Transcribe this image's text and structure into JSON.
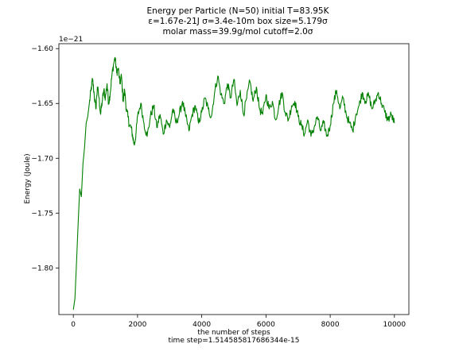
{
  "chart_data": {
    "type": "line",
    "title_lines": [
      "Energy per Particle (N=50) initial T=83.95K",
      "ε=1.67e-21J σ=3.4e-10m box size=5.179σ",
      "molar mass=39.9g/mol cutoff=2.0σ"
    ],
    "xlabel_lines": [
      "the number of steps",
      "time step=1.514585817686344e-15"
    ],
    "ylabel": "Energy (Joule)",
    "y_offset_label": "1e−21",
    "xlim": [
      -450,
      10450
    ],
    "ylim": [
      -1.8425,
      -1.5955
    ],
    "x_ticks": [
      0,
      2000,
      4000,
      6000,
      8000,
      10000
    ],
    "x_tick_labels": [
      "0",
      "2000",
      "4000",
      "6000",
      "8000",
      "10000"
    ],
    "y_ticks": [
      -1.8,
      -1.75,
      -1.7,
      -1.65,
      -1.6
    ],
    "y_tick_labels": [
      "−1.80",
      "−1.75",
      "−1.70",
      "−1.65",
      "−1.60"
    ],
    "grid": false,
    "series": [
      {
        "color": "#008000",
        "x": [
          0,
          50,
          100,
          150,
          200,
          250,
          300,
          350,
          400,
          450,
          500,
          550,
          600,
          650,
          700,
          750,
          800,
          850,
          900,
          950,
          1000,
          1050,
          1100,
          1150,
          1200,
          1250,
          1300,
          1350,
          1400,
          1450,
          1500,
          1550,
          1600,
          1650,
          1700,
          1750,
          1800,
          1850,
          1900,
          1950,
          2000,
          2100,
          2200,
          2300,
          2400,
          2500,
          2600,
          2700,
          2800,
          2900,
          3000,
          3100,
          3200,
          3300,
          3400,
          3500,
          3600,
          3700,
          3800,
          3900,
          4000,
          4100,
          4200,
          4300,
          4400,
          4500,
          4600,
          4700,
          4800,
          4900,
          5000,
          5100,
          5200,
          5300,
          5400,
          5500,
          5600,
          5700,
          5800,
          5900,
          6000,
          6100,
          6200,
          6300,
          6400,
          6500,
          6600,
          6700,
          6800,
          6900,
          7000,
          7100,
          7200,
          7300,
          7400,
          7500,
          7600,
          7700,
          7800,
          7900,
          8000,
          8100,
          8200,
          8300,
          8400,
          8500,
          8600,
          8700,
          8800,
          8900,
          9000,
          9100,
          9200,
          9300,
          9400,
          9500,
          9600,
          9700,
          9800,
          9900,
          10000
        ],
        "y": [
          -1.838,
          -1.828,
          -1.795,
          -1.76,
          -1.728,
          -1.735,
          -1.705,
          -1.69,
          -1.668,
          -1.662,
          -1.65,
          -1.638,
          -1.628,
          -1.642,
          -1.655,
          -1.635,
          -1.645,
          -1.66,
          -1.648,
          -1.638,
          -1.645,
          -1.632,
          -1.65,
          -1.64,
          -1.625,
          -1.615,
          -1.608,
          -1.622,
          -1.618,
          -1.632,
          -1.625,
          -1.648,
          -1.638,
          -1.655,
          -1.662,
          -1.67,
          -1.672,
          -1.68,
          -1.688,
          -1.678,
          -1.662,
          -1.65,
          -1.668,
          -1.68,
          -1.662,
          -1.652,
          -1.672,
          -1.66,
          -1.678,
          -1.665,
          -1.672,
          -1.655,
          -1.668,
          -1.66,
          -1.648,
          -1.662,
          -1.675,
          -1.66,
          -1.652,
          -1.668,
          -1.658,
          -1.645,
          -1.655,
          -1.662,
          -1.64,
          -1.625,
          -1.642,
          -1.65,
          -1.632,
          -1.645,
          -1.628,
          -1.652,
          -1.638,
          -1.66,
          -1.645,
          -1.63,
          -1.648,
          -1.635,
          -1.655,
          -1.66,
          -1.642,
          -1.655,
          -1.648,
          -1.665,
          -1.652,
          -1.64,
          -1.658,
          -1.665,
          -1.652,
          -1.648,
          -1.662,
          -1.67,
          -1.678,
          -1.665,
          -1.68,
          -1.672,
          -1.662,
          -1.675,
          -1.668,
          -1.68,
          -1.67,
          -1.65,
          -1.638,
          -1.655,
          -1.645,
          -1.66,
          -1.668,
          -1.675,
          -1.66,
          -1.652,
          -1.64,
          -1.648,
          -1.642,
          -1.655,
          -1.648,
          -1.64,
          -1.65,
          -1.658,
          -1.665,
          -1.66,
          -1.668
        ]
      }
    ]
  }
}
